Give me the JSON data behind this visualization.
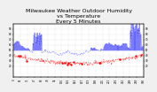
{
  "title": "Milwaukee Weather Outdoor Humidity\nvs Temperature\nEvery 5 Minutes",
  "title_fontsize": 4.5,
  "background_color": "#f0f0f0",
  "plot_bg_color": "#ffffff",
  "grid_color": "#aaaaaa",
  "blue_color": "#0000ff",
  "red_color": "#ff0000",
  "ylim": [
    0,
    100
  ],
  "ylabel_right": [
    "9",
    "8",
    "7",
    "6",
    "5",
    "4"
  ],
  "n_points": 300
}
